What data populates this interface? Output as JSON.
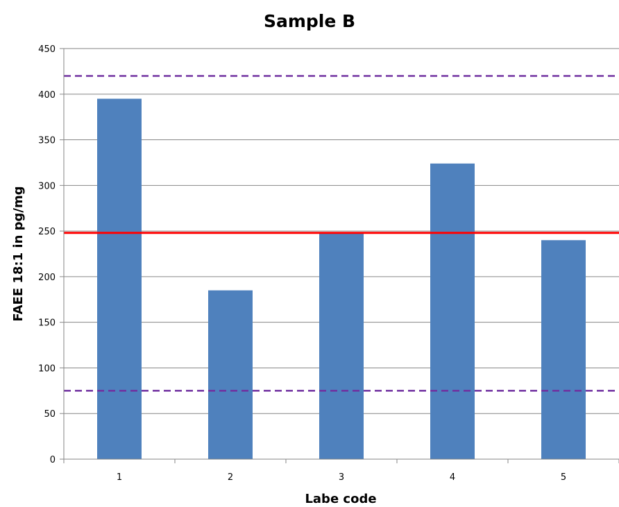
{
  "chart_data": {
    "type": "bar",
    "title": "Sample B",
    "xlabel": "Labe code",
    "ylabel": "FAEE 18:1 in pg/mg",
    "categories": [
      "1",
      "2",
      "3",
      "4",
      "5"
    ],
    "values": [
      395,
      185,
      248,
      324,
      240
    ],
    "ylim": [
      0,
      450
    ],
    "yticks": [
      0,
      50,
      100,
      150,
      200,
      250,
      300,
      350,
      400,
      450
    ],
    "grid": true,
    "legend": "none",
    "reference_lines": [
      {
        "value": 248,
        "style": "solid",
        "color": "#ff0000"
      },
      {
        "value": 420,
        "style": "dashed",
        "color": "#7030a0"
      },
      {
        "value": 75,
        "style": "dashed",
        "color": "#7030a0"
      }
    ],
    "colors": {
      "bar": "#4f81bd",
      "grid": "#868686",
      "axis": "#868686"
    }
  }
}
